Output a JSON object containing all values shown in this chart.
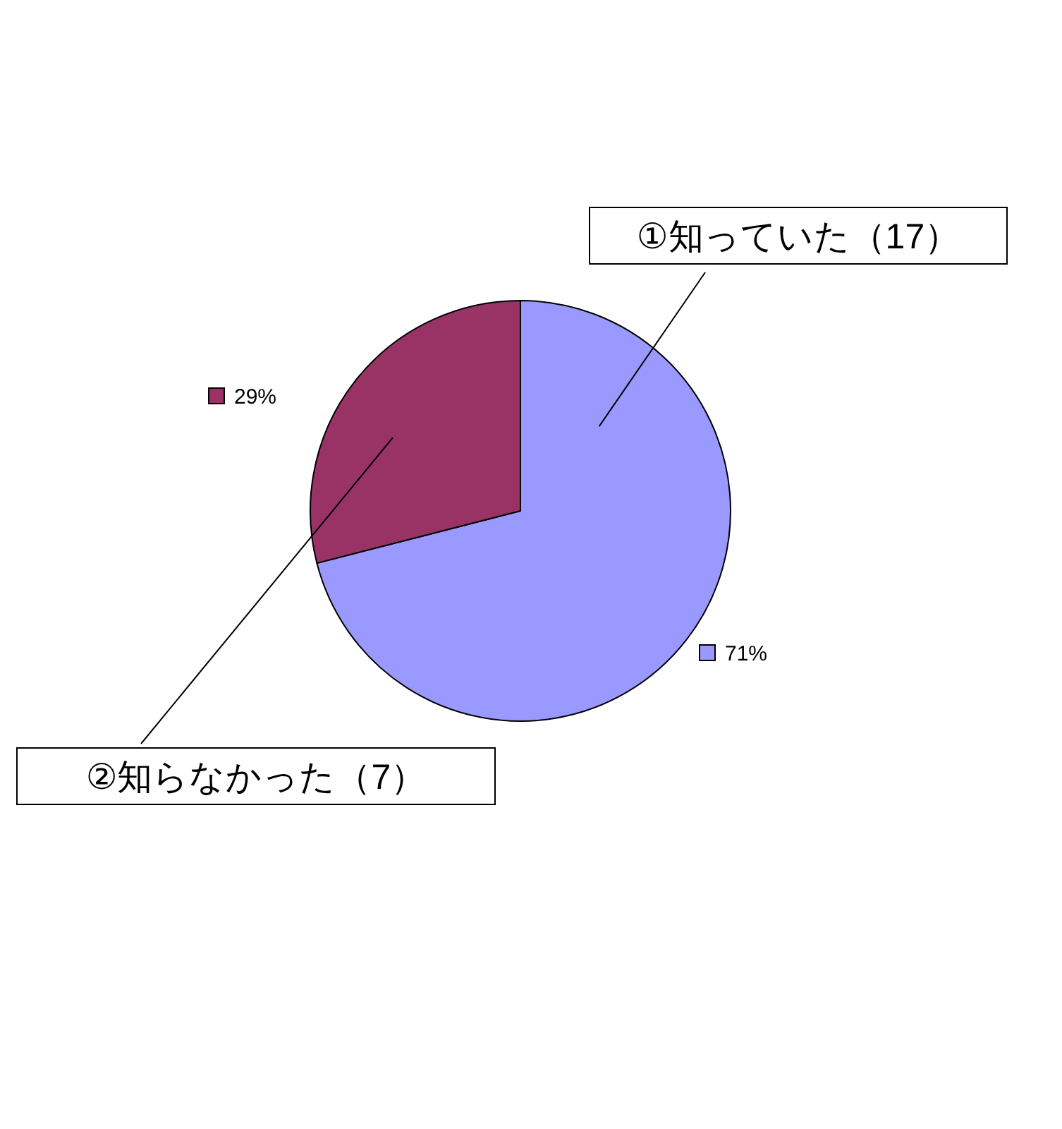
{
  "chart_data": {
    "type": "pie",
    "categories": [
      "①知っていた（17）",
      "②知らなかった（7）"
    ],
    "values": [
      71,
      29
    ],
    "colors": [
      "#9999ff",
      "#993366"
    ],
    "value_labels": [
      "71%",
      "29%"
    ]
  }
}
